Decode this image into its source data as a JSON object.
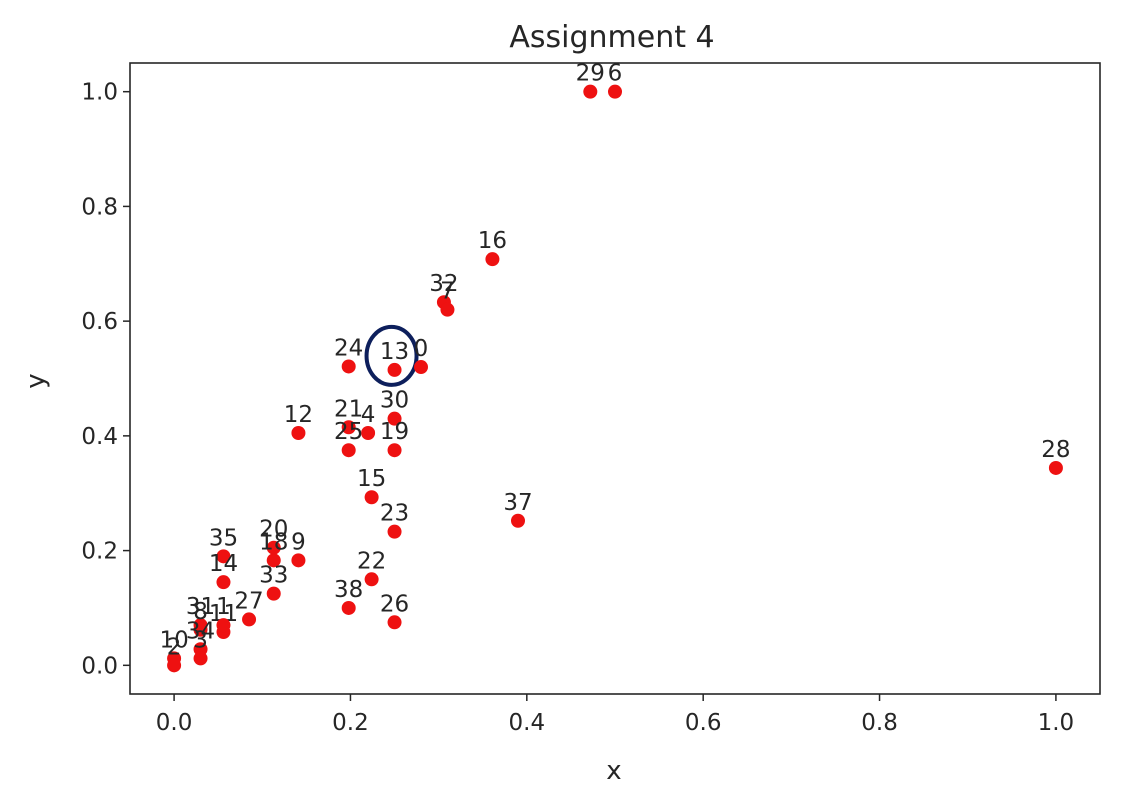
{
  "chart_data": {
    "type": "scatter",
    "title": "Assignment 4",
    "xlabel": "x",
    "ylabel": "y",
    "xlim": [
      -0.05,
      1.05
    ],
    "ylim": [
      -0.05,
      1.05
    ],
    "xticks": [
      0.0,
      0.2,
      0.4,
      0.6,
      0.8,
      1.0
    ],
    "yticks": [
      0.0,
      0.2,
      0.4,
      0.6,
      0.8,
      1.0
    ],
    "xtick_labels": [
      "0.0",
      "0.2",
      "0.4",
      "0.6",
      "0.8",
      "1.0"
    ],
    "ytick_labels": [
      "0.0",
      "0.2",
      "0.4",
      "0.6",
      "0.8",
      "1.0"
    ],
    "grid": false,
    "marker_color": "#ee1111",
    "highlight_color": "#0d1f5c",
    "highlighted_label": "13",
    "points": [
      {
        "label": "29",
        "x": 0.472,
        "y": 1.0
      },
      {
        "label": "6",
        "x": 0.5,
        "y": 1.0
      },
      {
        "label": "16",
        "x": 0.361,
        "y": 0.708
      },
      {
        "label": "32",
        "x": 0.306,
        "y": 0.633
      },
      {
        "label": "7",
        "x": 0.31,
        "y": 0.62
      },
      {
        "label": "24",
        "x": 0.198,
        "y": 0.521
      },
      {
        "label": "13",
        "x": 0.25,
        "y": 0.515
      },
      {
        "label": "0",
        "x": 0.28,
        "y": 0.52
      },
      {
        "label": "12",
        "x": 0.141,
        "y": 0.405
      },
      {
        "label": "21",
        "x": 0.198,
        "y": 0.415
      },
      {
        "label": "4",
        "x": 0.22,
        "y": 0.405
      },
      {
        "label": "30",
        "x": 0.25,
        "y": 0.43
      },
      {
        "label": "25",
        "x": 0.198,
        "y": 0.375
      },
      {
        "label": "19",
        "x": 0.25,
        "y": 0.375
      },
      {
        "label": "15",
        "x": 0.224,
        "y": 0.293
      },
      {
        "label": "23",
        "x": 0.25,
        "y": 0.233
      },
      {
        "label": "37",
        "x": 0.39,
        "y": 0.252
      },
      {
        "label": "28",
        "x": 1.0,
        "y": 0.344
      },
      {
        "label": "20",
        "x": 0.113,
        "y": 0.205
      },
      {
        "label": "18",
        "x": 0.113,
        "y": 0.183
      },
      {
        "label": "9",
        "x": 0.141,
        "y": 0.183
      },
      {
        "label": "35",
        "x": 0.056,
        "y": 0.19
      },
      {
        "label": "14",
        "x": 0.056,
        "y": 0.145
      },
      {
        "label": "33",
        "x": 0.113,
        "y": 0.125
      },
      {
        "label": "22",
        "x": 0.224,
        "y": 0.15
      },
      {
        "label": "38",
        "x": 0.198,
        "y": 0.1
      },
      {
        "label": "26",
        "x": 0.25,
        "y": 0.075
      },
      {
        "label": "27",
        "x": 0.085,
        "y": 0.08
      },
      {
        "label": "31",
        "x": 0.03,
        "y": 0.07
      },
      {
        "label": "8",
        "x": 0.03,
        "y": 0.062
      },
      {
        "label": "11",
        "x": 0.056,
        "y": 0.058
      },
      {
        "label": "1",
        "x": 0.056,
        "y": 0.07
      },
      {
        "label": "34",
        "x": 0.03,
        "y": 0.028
      },
      {
        "label": "3",
        "x": 0.03,
        "y": 0.012
      },
      {
        "label": "10",
        "x": 0.0,
        "y": 0.012
      },
      {
        "label": "2",
        "x": 0.0,
        "y": 0.0
      }
    ]
  }
}
